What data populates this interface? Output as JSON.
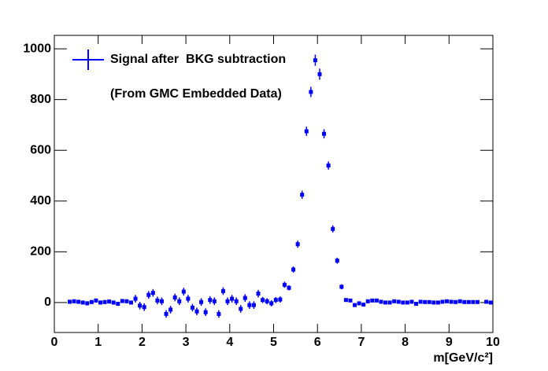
{
  "chart_data": {
    "type": "errorbar",
    "series": [
      {
        "name": "Signal after  BKG subtraction",
        "color": "#0000ff",
        "x": [
          0.35,
          0.45,
          0.55,
          0.65,
          0.75,
          0.85,
          0.95,
          1.05,
          1.15,
          1.25,
          1.35,
          1.45,
          1.55,
          1.65,
          1.75,
          1.85,
          1.95,
          2.05,
          2.15,
          2.25,
          2.35,
          2.45,
          2.55,
          2.65,
          2.75,
          2.85,
          2.95,
          3.05,
          3.15,
          3.25,
          3.35,
          3.45,
          3.55,
          3.65,
          3.75,
          3.85,
          3.95,
          4.05,
          4.15,
          4.25,
          4.35,
          4.45,
          4.55,
          4.65,
          4.75,
          4.85,
          4.95,
          5.05,
          5.15,
          5.25,
          5.35,
          5.45,
          5.55,
          5.65,
          5.75,
          5.85,
          5.95,
          6.05,
          6.15,
          6.25,
          6.35,
          6.45,
          6.55,
          6.65,
          6.75,
          6.85,
          6.95,
          7.05,
          7.15,
          7.25,
          7.35,
          7.45,
          7.55,
          7.65,
          7.75,
          7.85,
          7.95,
          8.05,
          8.15,
          8.25,
          8.35,
          8.45,
          8.55,
          8.65,
          8.75,
          8.85,
          8.95,
          9.05,
          9.15,
          9.25,
          9.35,
          9.45,
          9.55,
          9.65,
          9.85,
          9.95
        ],
        "values": [
          3,
          5,
          3,
          0,
          -3,
          2,
          8,
          0,
          2,
          4,
          0,
          -5,
          6,
          5,
          0,
          15,
          -12,
          -18,
          30,
          38,
          8,
          5,
          -45,
          -28,
          20,
          5,
          43,
          15,
          -20,
          -35,
          2,
          -38,
          10,
          5,
          -45,
          45,
          5,
          15,
          5,
          -25,
          18,
          -10,
          -10,
          35,
          10,
          5,
          -3,
          10,
          12,
          70,
          58,
          130,
          230,
          425,
          675,
          830,
          955,
          900,
          665,
          540,
          290,
          165,
          62,
          10,
          8,
          -10,
          -3,
          -8,
          5,
          8,
          8,
          3,
          0,
          0,
          5,
          3,
          0,
          0,
          3,
          -5,
          3,
          2,
          2,
          0,
          0,
          3,
          5,
          3,
          2,
          5,
          2,
          2,
          2,
          2,
          3,
          0
        ],
        "errors": [
          8,
          8,
          8,
          8,
          8,
          8,
          8,
          8,
          8,
          8,
          8,
          8,
          8,
          8,
          8,
          15,
          15,
          15,
          15,
          15,
          15,
          15,
          15,
          15,
          15,
          15,
          15,
          15,
          15,
          15,
          15,
          15,
          15,
          15,
          15,
          15,
          15,
          15,
          15,
          15,
          15,
          15,
          15,
          15,
          12,
          12,
          12,
          12,
          12,
          12,
          10,
          12,
          14,
          16,
          18,
          20,
          22,
          22,
          18,
          16,
          14,
          12,
          10,
          6,
          6,
          6,
          6,
          6,
          6,
          6,
          6,
          6,
          6,
          6,
          6,
          6,
          6,
          6,
          6,
          6,
          6,
          6,
          6,
          6,
          6,
          6,
          6,
          6,
          6,
          6,
          6,
          6,
          6,
          6,
          6,
          6
        ]
      }
    ],
    "annotation": "(From GMC Embedded Data)",
    "xlabel": "m[GeV/c²]",
    "xlim": [
      0,
      10
    ],
    "xticks": [
      0,
      1,
      2,
      3,
      4,
      5,
      6,
      7,
      8,
      9,
      10
    ],
    "ylim": [
      -118,
      1053
    ],
    "yticks": [
      0,
      200,
      400,
      600,
      800,
      1000
    ],
    "legend": "upper left"
  }
}
